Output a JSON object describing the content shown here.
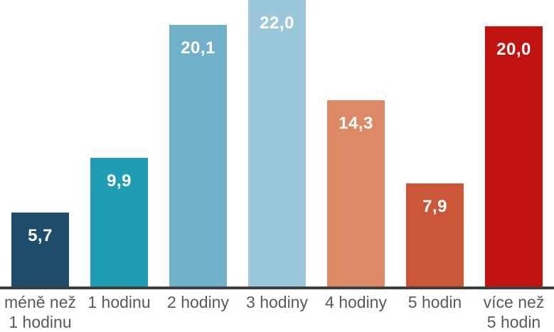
{
  "chart_data": {
    "type": "bar",
    "title": "",
    "xlabel": "",
    "ylabel": "",
    "categories": [
      "méně než 1 hodinu",
      "1 hodinu",
      "2 hodiny",
      "3 hodiny",
      "4 hodiny",
      "5 hodin",
      "více než 5 hodin"
    ],
    "category_lines": [
      [
        "méně než",
        "1 hodinu"
      ],
      [
        "1 hodinu"
      ],
      [
        "2 hodiny"
      ],
      [
        "3 hodiny"
      ],
      [
        "4 hodiny"
      ],
      [
        "5 hodin"
      ],
      [
        "více než",
        "5 hodin"
      ]
    ],
    "values": [
      5.7,
      9.9,
      20.1,
      22.0,
      14.3,
      7.9,
      20.0
    ],
    "value_labels": [
      "5,7",
      "9,9",
      "20,1",
      "22,0",
      "14,3",
      "7,9",
      "20,0"
    ],
    "bar_colors": [
      "#1E4D6C",
      "#1F9DB4",
      "#6FB1C8",
      "#9AC8DA",
      "#DE8966",
      "#CB5638",
      "#C11310"
    ],
    "ylim": [
      0,
      22
    ],
    "grid": false,
    "legend": "none",
    "axis_color": "#3F3F3F",
    "label_color": "#595959",
    "value_text_color": "#FFFFFF"
  }
}
